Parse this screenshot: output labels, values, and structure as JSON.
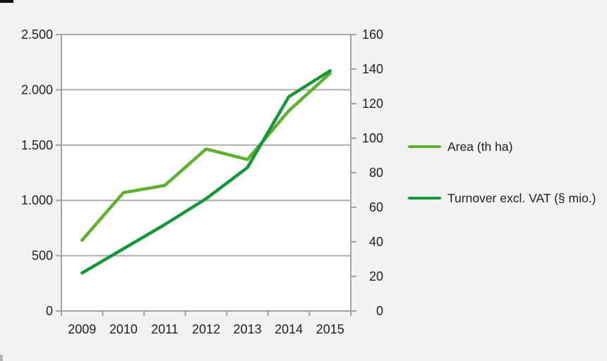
{
  "chart_data": {
    "type": "line",
    "categories": [
      "2009",
      "2010",
      "2011",
      "2012",
      "2013",
      "2014",
      "2015"
    ],
    "series": [
      {
        "name": "Area (th ha)",
        "axis": "left",
        "color": "#5eb12f",
        "values": [
          640,
          1070,
          1135,
          1465,
          1370,
          1810,
          2150
        ]
      },
      {
        "name": "Turnover excl. VAT (§ mio.)",
        "axis": "right",
        "color": "#17973a",
        "values": [
          22,
          36,
          50,
          65,
          83,
          124,
          139
        ]
      }
    ],
    "title": "",
    "xlabel": "",
    "ylabel_left": "",
    "ylabel_right": "",
    "left_axis": {
      "min": 0,
      "max": 2500,
      "step": 500,
      "tick_labels": [
        "0",
        "500",
        "1.000",
        "1.500",
        "2.000",
        "2.500"
      ]
    },
    "right_axis": {
      "min": 0,
      "max": 160,
      "step": 20,
      "tick_labels": [
        "0",
        "20",
        "40",
        "60",
        "80",
        "100",
        "120",
        "140",
        "160"
      ]
    },
    "grid": true,
    "legend_position": "right-outside"
  },
  "colors": {
    "background": "#f2f2f2",
    "plot_background": "#ffffff",
    "gridline": "#ababab",
    "axis_line": "#a3a3a3",
    "text": "#1f1f1f",
    "area_line": "#5eb12f",
    "turnover_line": "#17973a"
  }
}
